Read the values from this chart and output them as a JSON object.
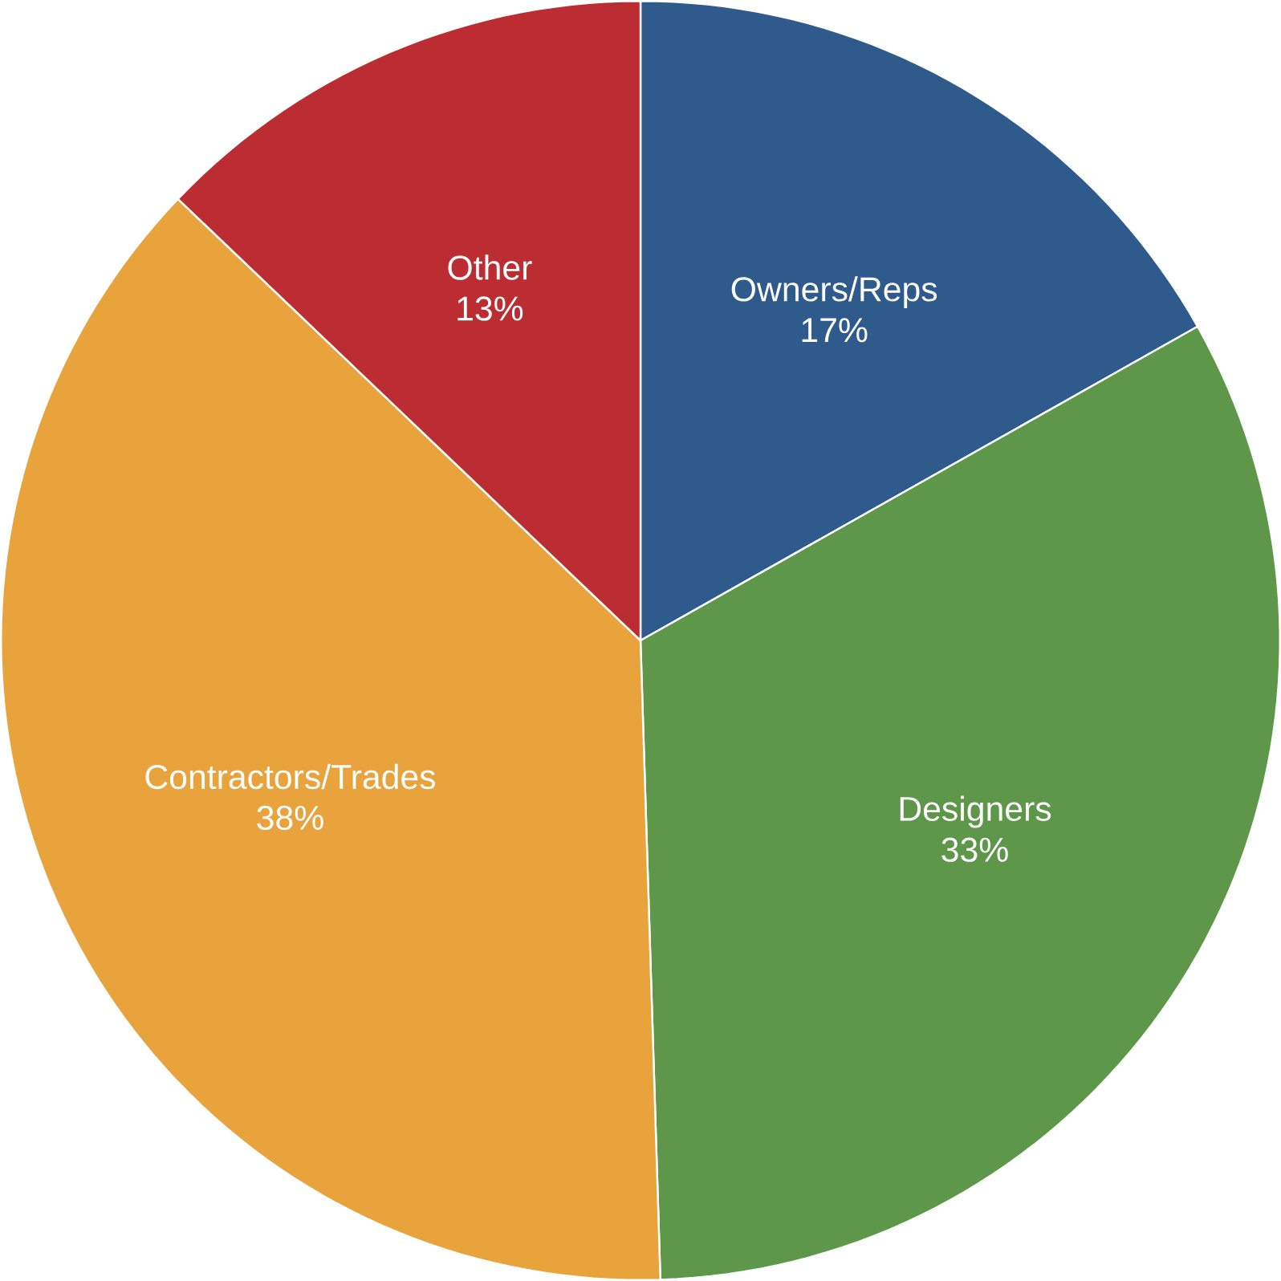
{
  "chart_data": {
    "type": "pie",
    "categories": [
      "Owners/Reps",
      "Designers",
      "Contractors/Trades",
      "Other"
    ],
    "values": [
      17,
      33,
      38,
      13
    ],
    "value_labels": [
      "17%",
      "33%",
      "38%",
      "13%"
    ],
    "colors": [
      "#2e5a8c",
      "#5e9749",
      "#e8a33d",
      "#bb2d32"
    ]
  }
}
